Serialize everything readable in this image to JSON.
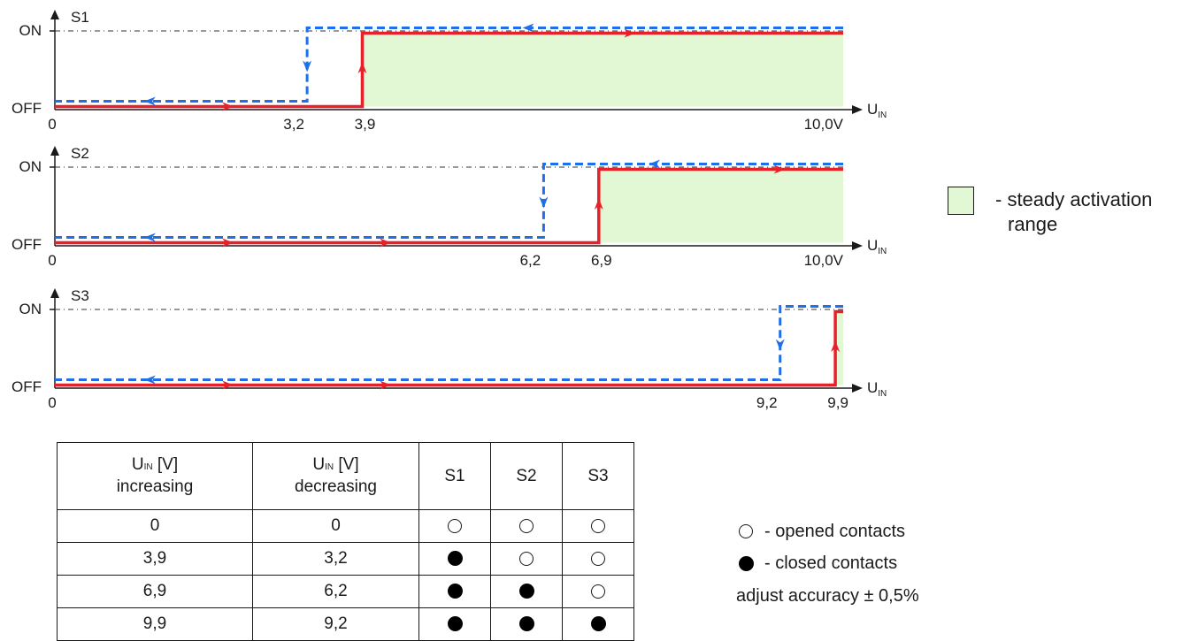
{
  "chart_data": [
    {
      "type": "line",
      "ylabel": "S1",
      "xlabel": "U",
      "xlabel_sub": "IN",
      "y_states": [
        "OFF",
        "ON"
      ],
      "x_ticks": [
        "0",
        "3,2",
        "3,9",
        "10,0V"
      ],
      "x_range": [
        0,
        10
      ],
      "series": [
        {
          "values": [
            [
              0,
              0
            ],
            [
              3.9,
              0
            ],
            [
              3.9,
              1
            ],
            [
              10,
              1
            ]
          ]
        },
        {
          "values": [
            [
              10,
              1
            ],
            [
              3.2,
              1
            ],
            [
              3.2,
              0
            ],
            [
              0,
              0
            ]
          ]
        }
      ],
      "steady_range": [
        3.9,
        10
      ]
    },
    {
      "type": "line",
      "ylabel": "S2",
      "xlabel": "U",
      "xlabel_sub": "IN",
      "y_states": [
        "OFF",
        "ON"
      ],
      "x_ticks": [
        "0",
        "6,2",
        "6,9",
        "10,0V"
      ],
      "x_range": [
        0,
        10
      ],
      "series": [
        {
          "values": [
            [
              0,
              0
            ],
            [
              6.9,
              0
            ],
            [
              6.9,
              1
            ],
            [
              10,
              1
            ]
          ]
        },
        {
          "values": [
            [
              10,
              1
            ],
            [
              6.2,
              1
            ],
            [
              6.2,
              0
            ],
            [
              0,
              0
            ]
          ]
        }
      ],
      "steady_range": [
        6.9,
        10
      ]
    },
    {
      "type": "line",
      "ylabel": "S3",
      "xlabel": "U",
      "xlabel_sub": "IN",
      "y_states": [
        "OFF",
        "ON"
      ],
      "x_ticks": [
        "0",
        "9,2",
        "9,9"
      ],
      "x_range": [
        0,
        10
      ],
      "series": [
        {
          "values": [
            [
              0,
              0
            ],
            [
              9.9,
              0
            ],
            [
              9.9,
              1
            ],
            [
              10,
              1
            ]
          ]
        },
        {
          "values": [
            [
              10,
              1
            ],
            [
              9.2,
              1
            ],
            [
              9.2,
              0
            ],
            [
              0,
              0
            ]
          ]
        }
      ],
      "steady_range": [
        9.9,
        10
      ]
    }
  ],
  "colors": {
    "increasing": "#e8202a",
    "decreasing": "#1f6fe8",
    "steady_fill": "#e2f7d3"
  },
  "legend": {
    "activation_line1": "- steady activation",
    "activation_line2": "range",
    "opened": "- opened contacts",
    "closed": "- closed contacts",
    "accuracy": "adjust accuracy ± 0,5%"
  },
  "table": {
    "headers": {
      "u": "U",
      "u_sub": "IN",
      "unit": " [V]",
      "increasing": "increasing",
      "decreasing": "decreasing",
      "s1": "S1",
      "s2": "S2",
      "s3": "S3"
    },
    "rows": [
      {
        "increasing": "0",
        "decreasing": "0",
        "states": [
          "open",
          "open",
          "open"
        ]
      },
      {
        "increasing": "3,9",
        "decreasing": "3,2",
        "states": [
          "closed",
          "open",
          "open"
        ]
      },
      {
        "increasing": "6,9",
        "decreasing": "6,2",
        "states": [
          "closed",
          "closed",
          "open"
        ]
      },
      {
        "increasing": "9,9",
        "decreasing": "9,2",
        "states": [
          "closed",
          "closed",
          "closed"
        ]
      }
    ]
  }
}
